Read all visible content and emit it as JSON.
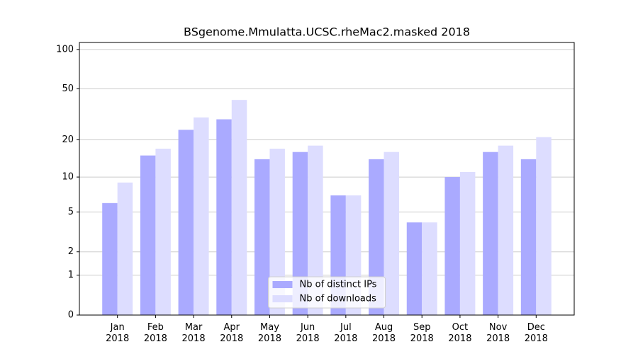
{
  "chart_data": {
    "type": "bar",
    "title": "BSgenome.Mmulatta.UCSC.rheMac2.masked 2018",
    "categories": [
      "Jan\n2018",
      "Feb\n2018",
      "Mar\n2018",
      "Apr\n2018",
      "May\n2018",
      "Jun\n2018",
      "Jul\n2018",
      "Aug\n2018",
      "Sep\n2018",
      "Oct\n2018",
      "Nov\n2018",
      "Dec\n2018"
    ],
    "series": [
      {
        "name": "Nb of distinct IPs",
        "color": "#aaaaff",
        "values": [
          6,
          15,
          24,
          29,
          14,
          16,
          7,
          14,
          4,
          10,
          16,
          14
        ]
      },
      {
        "name": "Nb of downloads",
        "color": "#ddddff",
        "values": [
          9,
          17,
          30,
          41,
          17,
          18,
          7,
          16,
          4,
          11,
          18,
          21
        ]
      }
    ],
    "yscale": "log1p",
    "ylim": [
      0,
      113
    ],
    "yticks": [
      0,
      1,
      2,
      5,
      10,
      20,
      50,
      100
    ],
    "grid": true,
    "legend": "lower center"
  }
}
